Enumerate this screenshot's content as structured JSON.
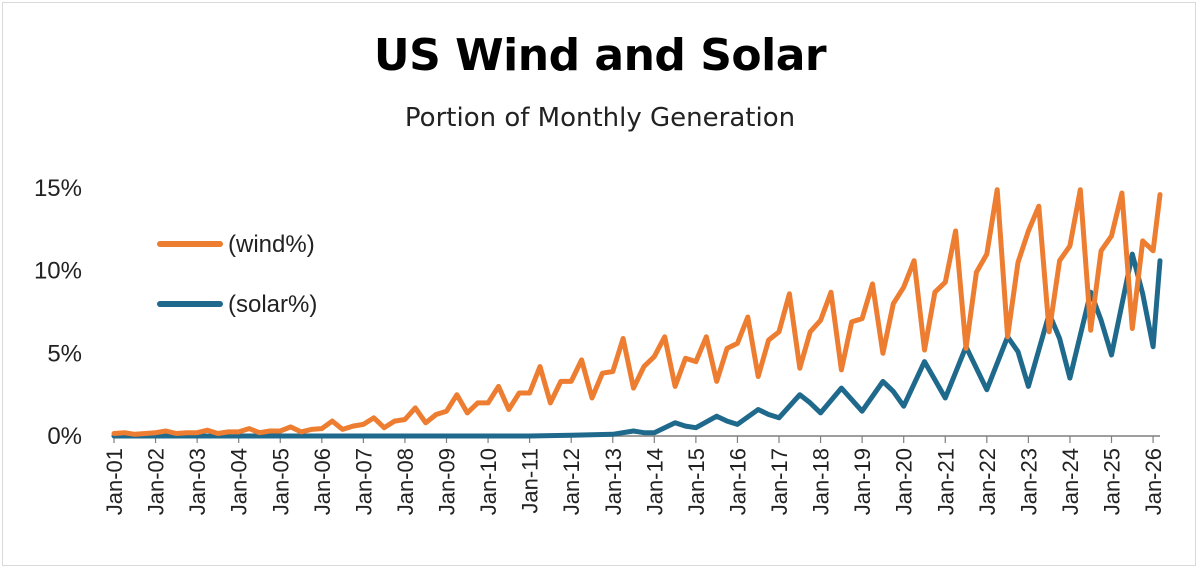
{
  "colors": {
    "wind": "#ed7d31",
    "solar": "#1f6a8c",
    "axis": "#7f7f7f"
  },
  "chart_data": {
    "type": "line",
    "title": "US Wind and Solar",
    "subtitle": "Portion of Monthly Generation",
    "xlabel": "",
    "ylabel": "",
    "ylim": [
      0,
      15
    ],
    "y_ticks": [
      "0%",
      "5%",
      "10%",
      "15%"
    ],
    "x_ticks": [
      "Jan-01",
      "Jan-02",
      "Jan-03",
      "Jan-04",
      "Jan-05",
      "Jan-06",
      "Jan-07",
      "Jan-08",
      "Jan-09",
      "Jan-10",
      "Jan-11",
      "Jan-12",
      "Jan-13",
      "Jan-14",
      "Jan-15",
      "Jan-16",
      "Jan-17",
      "Jan-18",
      "Jan-19",
      "Jan-20",
      "Jan-21",
      "Jan-22",
      "Jan-23",
      "Jan-24",
      "Jan-25",
      "Jan-26"
    ],
    "legend_position": "upper-left",
    "series": [
      {
        "name": "(wind%)",
        "color": "#ed7d31",
        "points": [
          [
            "Jan-01",
            0.15
          ],
          [
            "Apr-01",
            0.2
          ],
          [
            "Jul-01",
            0.1
          ],
          [
            "Oct-01",
            0.15
          ],
          [
            "Jan-02",
            0.2
          ],
          [
            "Apr-02",
            0.3
          ],
          [
            "Jul-02",
            0.15
          ],
          [
            "Oct-02",
            0.2
          ],
          [
            "Jan-03",
            0.2
          ],
          [
            "Apr-03",
            0.35
          ],
          [
            "Jul-03",
            0.15
          ],
          [
            "Oct-03",
            0.25
          ],
          [
            "Jan-04",
            0.25
          ],
          [
            "Apr-04",
            0.45
          ],
          [
            "Jul-04",
            0.2
          ],
          [
            "Oct-04",
            0.3
          ],
          [
            "Jan-05",
            0.3
          ],
          [
            "Apr-05",
            0.55
          ],
          [
            "Jul-05",
            0.25
          ],
          [
            "Oct-05",
            0.4
          ],
          [
            "Jan-06",
            0.45
          ],
          [
            "Apr-06",
            0.9
          ],
          [
            "Jul-06",
            0.4
          ],
          [
            "Oct-06",
            0.6
          ],
          [
            "Jan-07",
            0.7
          ],
          [
            "Apr-07",
            1.1
          ],
          [
            "Jul-07",
            0.5
          ],
          [
            "Oct-07",
            0.9
          ],
          [
            "Jan-08",
            1.0
          ],
          [
            "Apr-08",
            1.7
          ],
          [
            "Jul-08",
            0.8
          ],
          [
            "Oct-08",
            1.3
          ],
          [
            "Jan-09",
            1.5
          ],
          [
            "Apr-09",
            2.5
          ],
          [
            "Jul-09",
            1.4
          ],
          [
            "Oct-09",
            2.0
          ],
          [
            "Jan-10",
            2.0
          ],
          [
            "Apr-10",
            3.0
          ],
          [
            "Jul-10",
            1.6
          ],
          [
            "Oct-10",
            2.6
          ],
          [
            "Jan-11",
            2.6
          ],
          [
            "Apr-11",
            4.2
          ],
          [
            "Jul-11",
            2.0
          ],
          [
            "Oct-11",
            3.3
          ],
          [
            "Jan-12",
            3.3
          ],
          [
            "Apr-12",
            4.6
          ],
          [
            "Jul-12",
            2.3
          ],
          [
            "Oct-12",
            3.8
          ],
          [
            "Jan-13",
            3.9
          ],
          [
            "Apr-13",
            5.9
          ],
          [
            "Jul-13",
            2.9
          ],
          [
            "Oct-13",
            4.2
          ],
          [
            "Jan-14",
            4.8
          ],
          [
            "Apr-14",
            6.0
          ],
          [
            "Jul-14",
            3.0
          ],
          [
            "Oct-14",
            4.7
          ],
          [
            "Jan-15",
            4.5
          ],
          [
            "Apr-15",
            6.0
          ],
          [
            "Jul-15",
            3.3
          ],
          [
            "Oct-15",
            5.3
          ],
          [
            "Jan-16",
            5.6
          ],
          [
            "Apr-16",
            7.2
          ],
          [
            "Jul-16",
            3.6
          ],
          [
            "Oct-16",
            5.8
          ],
          [
            "Jan-17",
            6.3
          ],
          [
            "Apr-17",
            8.6
          ],
          [
            "Jul-17",
            4.1
          ],
          [
            "Oct-17",
            6.3
          ],
          [
            "Jan-18",
            7.0
          ],
          [
            "Apr-18",
            8.7
          ],
          [
            "Jul-18",
            4.0
          ],
          [
            "Oct-18",
            6.9
          ],
          [
            "Jan-19",
            7.1
          ],
          [
            "Apr-19",
            9.2
          ],
          [
            "Jul-19",
            5.0
          ],
          [
            "Oct-19",
            8.0
          ],
          [
            "Jan-20",
            9.0
          ],
          [
            "Apr-20",
            10.6
          ],
          [
            "Jul-20",
            5.2
          ],
          [
            "Oct-20",
            8.7
          ],
          [
            "Jan-21",
            9.3
          ],
          [
            "Apr-21",
            12.4
          ],
          [
            "Jul-21",
            5.3
          ],
          [
            "Oct-21",
            9.9
          ],
          [
            "Jan-22",
            11.0
          ],
          [
            "Apr-22",
            14.9
          ],
          [
            "Jul-22",
            6.0
          ],
          [
            "Oct-22",
            10.5
          ],
          [
            "Jan-23",
            12.4
          ],
          [
            "Apr-23",
            13.9
          ],
          [
            "Jul-23",
            6.3
          ],
          [
            "Oct-23",
            10.6
          ],
          [
            "Jan-24",
            11.5
          ],
          [
            "Apr-24",
            14.9
          ],
          [
            "Jul-24",
            6.4
          ],
          [
            "Oct-24",
            11.2
          ],
          [
            "Jan-25",
            12.1
          ],
          [
            "Apr-25",
            14.7
          ],
          [
            "Jul-25",
            6.5
          ],
          [
            "Oct-25",
            11.8
          ],
          [
            "Jan-26",
            11.2
          ],
          [
            "Mar-26",
            14.6
          ]
        ]
      },
      {
        "name": "(solar%)",
        "color": "#1f6a8c",
        "points": [
          [
            "Jan-01",
            0.0
          ],
          [
            "Jan-02",
            0.0
          ],
          [
            "Jan-03",
            0.0
          ],
          [
            "Jan-04",
            0.0
          ],
          [
            "Jan-05",
            0.0
          ],
          [
            "Jan-06",
            0.0
          ],
          [
            "Jan-07",
            0.0
          ],
          [
            "Jan-08",
            0.0
          ],
          [
            "Jan-09",
            0.0
          ],
          [
            "Jan-10",
            0.0
          ],
          [
            "Jan-11",
            0.0
          ],
          [
            "Jan-12",
            0.05
          ],
          [
            "Jan-13",
            0.1
          ],
          [
            "Jul-13",
            0.3
          ],
          [
            "Oct-13",
            0.2
          ],
          [
            "Jan-14",
            0.2
          ],
          [
            "Jul-14",
            0.8
          ],
          [
            "Oct-14",
            0.6
          ],
          [
            "Jan-15",
            0.5
          ],
          [
            "Jul-15",
            1.2
          ],
          [
            "Oct-15",
            0.9
          ],
          [
            "Jan-16",
            0.7
          ],
          [
            "Jul-16",
            1.6
          ],
          [
            "Oct-16",
            1.3
          ],
          [
            "Jan-17",
            1.1
          ],
          [
            "Jul-17",
            2.5
          ],
          [
            "Oct-17",
            2.0
          ],
          [
            "Jan-18",
            1.4
          ],
          [
            "Jul-18",
            2.9
          ],
          [
            "Oct-18",
            2.2
          ],
          [
            "Jan-19",
            1.5
          ],
          [
            "Jul-19",
            3.3
          ],
          [
            "Oct-19",
            2.7
          ],
          [
            "Jan-20",
            1.8
          ],
          [
            "Jul-20",
            4.5
          ],
          [
            "Oct-20",
            3.4
          ],
          [
            "Jan-21",
            2.3
          ],
          [
            "Jul-21",
            5.4
          ],
          [
            "Oct-21",
            4.1
          ],
          [
            "Jan-22",
            2.8
          ],
          [
            "Jul-22",
            6.0
          ],
          [
            "Oct-22",
            5.1
          ],
          [
            "Jan-23",
            3.0
          ],
          [
            "Jul-23",
            7.4
          ],
          [
            "Oct-23",
            5.9
          ],
          [
            "Jan-24",
            3.5
          ],
          [
            "Jul-24",
            8.7
          ],
          [
            "Oct-24",
            7.0
          ],
          [
            "Jan-25",
            4.9
          ],
          [
            "Jul-25",
            11.0
          ],
          [
            "Oct-25",
            8.6
          ],
          [
            "Jan-26",
            5.4
          ],
          [
            "Mar-26",
            10.6
          ]
        ]
      }
    ]
  }
}
